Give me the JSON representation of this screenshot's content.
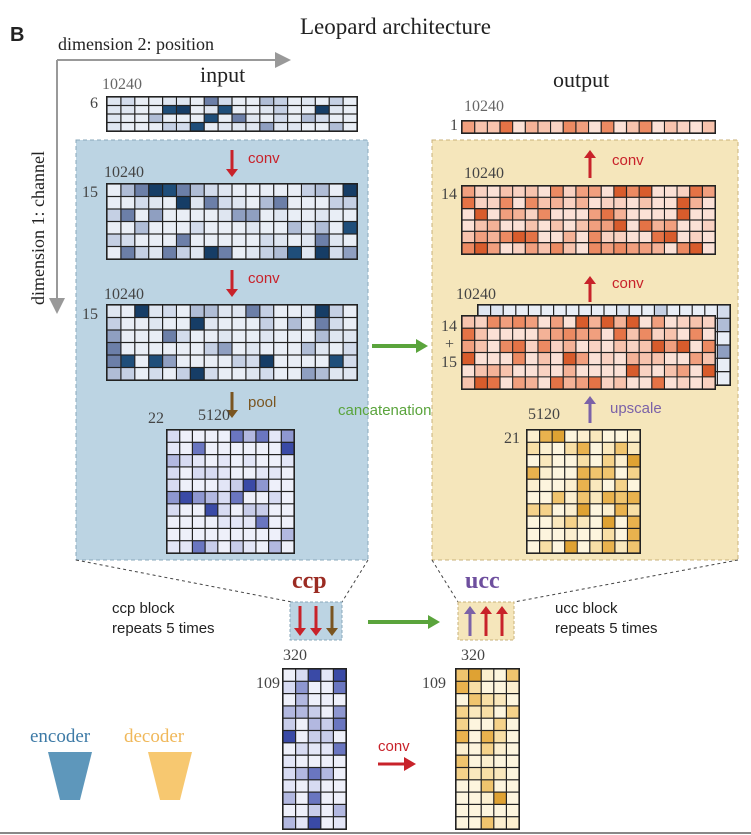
{
  "panel_letter": "B",
  "title": "Leopard architecture",
  "axes": {
    "dim2": "dimension 2: position",
    "dim1": "dimension 1: channel"
  },
  "input": {
    "heading": "input",
    "top": {
      "len": "10240",
      "ch": "6"
    },
    "layer1": {
      "len": "10240",
      "ch": "15"
    },
    "layer2": {
      "len": "10240",
      "ch": "15"
    },
    "pool": {
      "len": "5120",
      "ch": "22"
    },
    "op1": "conv",
    "op2": "conv",
    "op3": "pool"
  },
  "output": {
    "heading": "output",
    "top": {
      "len": "10240",
      "ch": "1"
    },
    "layer1": {
      "len": "10240",
      "ch": "14"
    },
    "layer2": {
      "len": "10240",
      "ch_a": "14",
      "plus": "+",
      "ch_b": "15"
    },
    "up": {
      "len": "5120",
      "ch": "21"
    },
    "op1": "conv",
    "op2": "conv",
    "op3": "upscale"
  },
  "concat_label": "cancatenation",
  "ccp": {
    "label": "ccp",
    "desc1": "ccp block",
    "desc2": "repeats 5 times"
  },
  "ucc": {
    "label": "ucc",
    "desc1": "ucc block",
    "desc2": "repeats 5 times"
  },
  "bottom": {
    "left": {
      "len": "320",
      "ch": "109"
    },
    "right": {
      "len": "320",
      "ch": "109"
    },
    "conv": "conv"
  },
  "legend": {
    "encoder": "encoder",
    "decoder": "decoder"
  },
  "colors": {
    "blue_panel": "#bcd4e3",
    "yellow_panel": "#f5e6bb",
    "conv_red": "#c8222a",
    "pool_brown": "#7a5520",
    "upscale_purple": "#7b62a8",
    "concat_green": "#5aa43c",
    "encoder": "#5e97bb",
    "decoder": "#f7c870",
    "ccp_text": "#9b2b22",
    "ucc_text": "#6e4f9e"
  }
}
